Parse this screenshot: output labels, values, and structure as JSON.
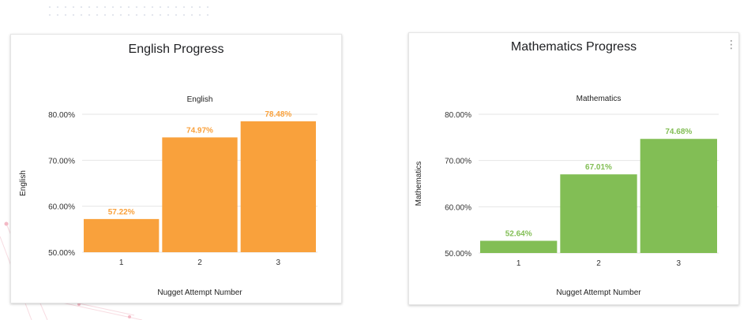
{
  "colors": {
    "english_bar": "#f9a13c",
    "math_bar": "#82be55",
    "grid": "#e6e6e6",
    "axis_text": "#333333"
  },
  "cards": [
    {
      "title": "English Progress",
      "has_menu": false,
      "chart_data": {
        "type": "bar",
        "title": "English",
        "xlabel": "Nugget Attempt Number",
        "ylabel": "English",
        "categories": [
          "1",
          "2",
          "3"
        ],
        "series": [
          {
            "values": [
              57.22,
              74.97,
              78.48
            ],
            "labels": [
              "57.22%",
              "74.97%",
              "78.48%"
            ]
          }
        ],
        "ylim": [
          50,
          80
        ],
        "yticks": [
          50,
          60,
          70,
          80
        ],
        "ytick_labels": [
          "50.00%",
          "60.00%",
          "70.00%",
          "80.00%"
        ],
        "grid": true,
        "legend": "none"
      }
    },
    {
      "title": "Mathematics Progress",
      "has_menu": true,
      "chart_data": {
        "type": "bar",
        "title": "Mathematics",
        "xlabel": "Nugget Attempt Number",
        "ylabel": "Mathematics",
        "categories": [
          "1",
          "2",
          "3"
        ],
        "series": [
          {
            "values": [
              52.64,
              67.01,
              74.68
            ],
            "labels": [
              "52.64%",
              "67.01%",
              "74.68%"
            ]
          }
        ],
        "ylim": [
          50,
          80
        ],
        "yticks": [
          50,
          60,
          70,
          80
        ],
        "ytick_labels": [
          "50.00%",
          "60.00%",
          "70.00%",
          "80.00%"
        ],
        "grid": true,
        "legend": "none"
      }
    }
  ]
}
